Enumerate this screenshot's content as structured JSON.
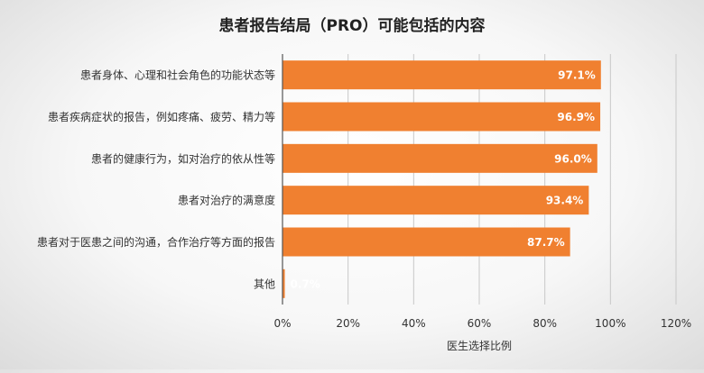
{
  "chart_data": {
    "type": "bar",
    "orientation": "horizontal",
    "title": "患者报告结局（PRO）可能包括的内容",
    "xlabel": "医生选择比例",
    "ylabel": "",
    "categories": [
      "患者身体、心理和社会角色的功能状态等",
      "患者疾病症状的报告，例如疼痛、疲劳、精力等",
      "患者的健康行为，如对治疗的依从性等",
      "患者对治疗的满意度",
      "患者对于医患之间的沟通，合作治疗等方面的报告",
      "其他"
    ],
    "values": [
      97.1,
      96.9,
      96.0,
      93.4,
      87.7,
      0.7
    ],
    "data_labels": [
      "97.1%",
      "96.9%",
      "96.0%",
      "93.4%",
      "87.7%",
      "0.7%"
    ],
    "xlim": [
      0,
      120
    ],
    "x_ticks": [
      "0%",
      "20%",
      "40%",
      "60%",
      "80%",
      "100%",
      "120%"
    ],
    "grid": true,
    "legend": "none",
    "colors": {
      "bar": "#F08030",
      "label_text": "#ffffff",
      "text": "#333333",
      "grid": "#c8c8c8",
      "axis": "#555555"
    }
  }
}
